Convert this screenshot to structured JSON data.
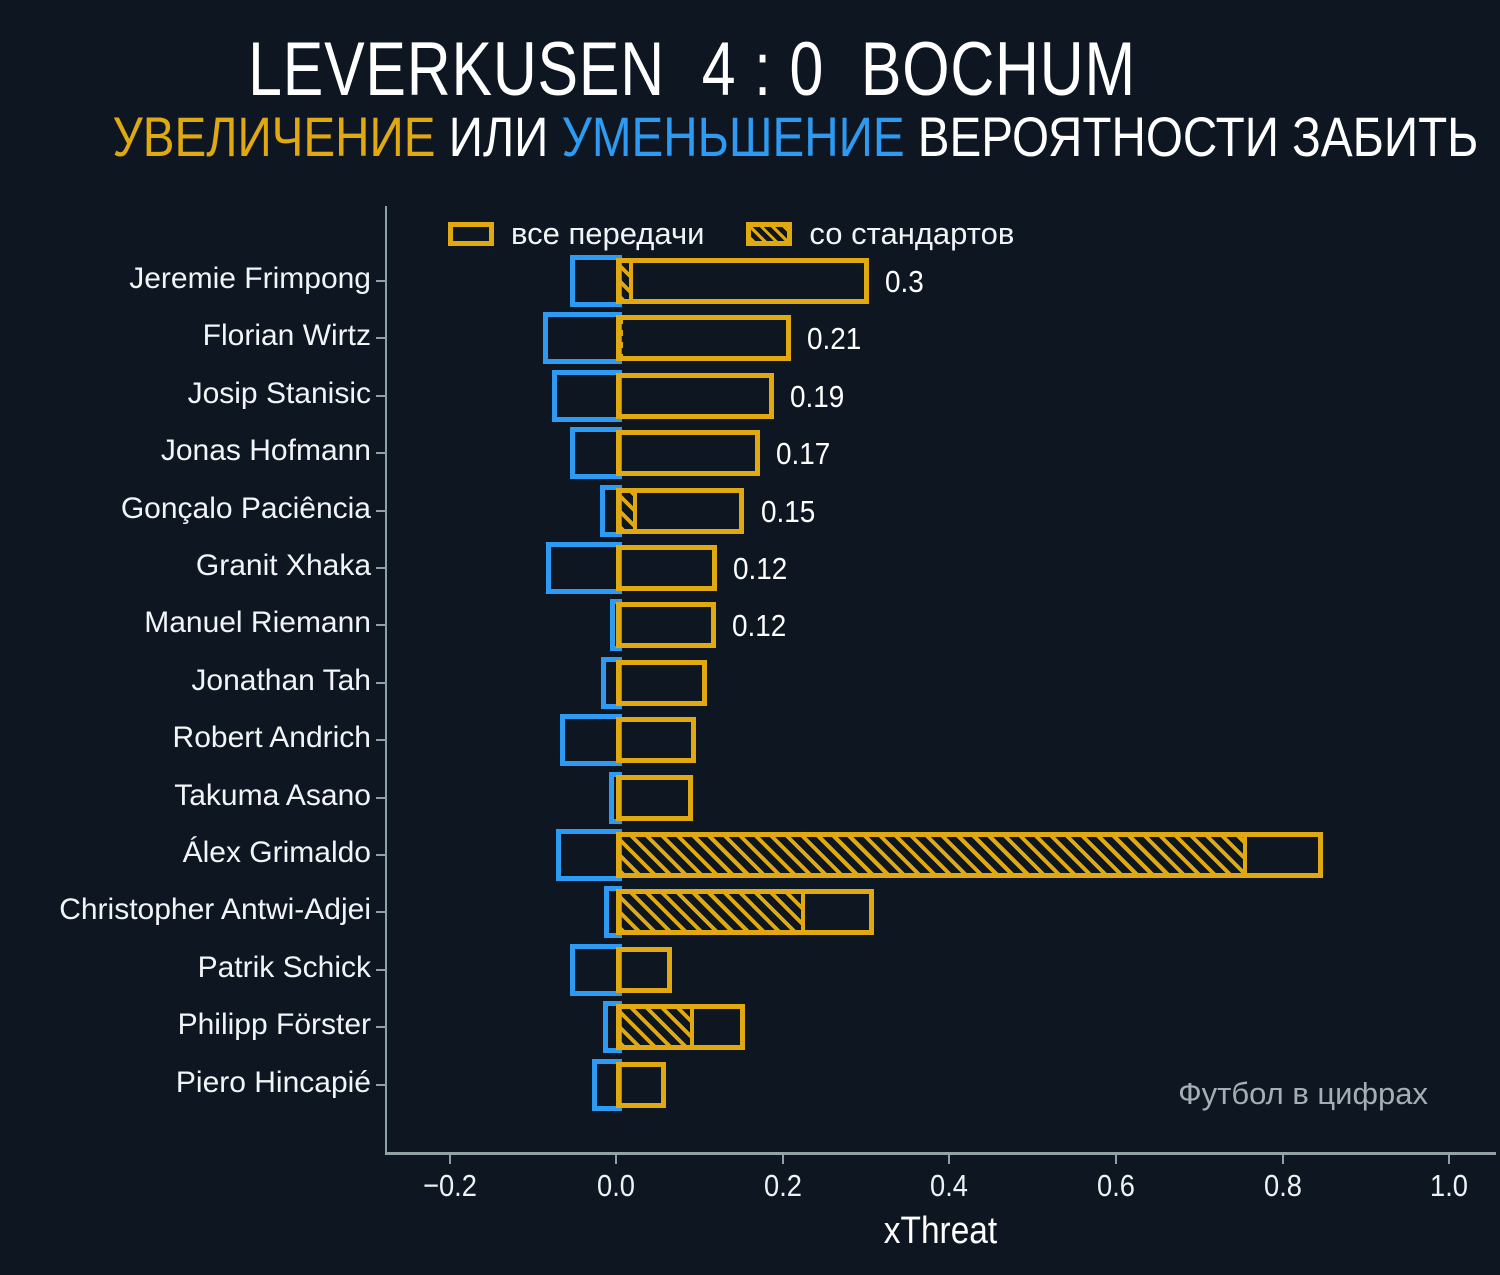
{
  "title": {
    "home": "LEVERKUSEN",
    "score": "4 : 0",
    "away": "BOCHUM"
  },
  "subtitle": {
    "increase_word": "УВЕЛИЧЕНИЕ",
    "or_word": "ИЛИ",
    "decrease_word": "УМЕНЬШЕНИЕ",
    "rest": "ВЕРОЯТНОСТИ ЗАБИТЬ"
  },
  "legend": {
    "all_passes": "все передачи",
    "set_pieces": "со стандартов"
  },
  "watermark": "Футбол в цифрах",
  "colors": {
    "background": "#0e1721",
    "increase_yellow": "#e0a912",
    "decrease_blue": "#2d9bf3",
    "axis_gray": "#8fa0a6",
    "text_white": "#f2f5f7",
    "watermark_gray": "#a4aeb5"
  },
  "chart_data": {
    "type": "bar",
    "orientation": "horizontal",
    "title": "LEVERKUSEN 4 : 0 BOCHUM — УВЕЛИЧЕНИЕ ИЛИ УМЕНЬШЕНИЕ ВЕРОЯТНОСТИ ЗАБИТЬ",
    "xlabel": "xThreat",
    "ylabel": "",
    "xlim": [
      -0.2775,
      1.056
    ],
    "grid": false,
    "legend_position": "top-left-inside",
    "series_legend": [
      "все передачи",
      "со стандартов"
    ],
    "x_ticks": [
      {
        "value": -0.2,
        "label": "−0.2"
      },
      {
        "value": 0.0,
        "label": "0.0"
      },
      {
        "value": 0.2,
        "label": "0.2"
      },
      {
        "value": 0.4,
        "label": "0.4"
      },
      {
        "value": 0.6,
        "label": "0.6"
      },
      {
        "value": 0.8,
        "label": "0.8"
      },
      {
        "value": 1.0,
        "label": "1.0"
      }
    ],
    "players": [
      {
        "name": "Jeremie Frimpong",
        "decrease": -0.056,
        "increase": 0.304,
        "set_pieces": 0.02,
        "label": "0.3"
      },
      {
        "name": "Florian Wirtz",
        "decrease": -0.088,
        "increase": 0.21,
        "set_pieces": 0.005,
        "label": "0.21"
      },
      {
        "name": "Josip Stanisic",
        "decrease": -0.077,
        "increase": 0.19,
        "set_pieces": 0,
        "label": "0.19"
      },
      {
        "name": "Jonas Hofmann",
        "decrease": -0.056,
        "increase": 0.173,
        "set_pieces": 0,
        "label": "0.17"
      },
      {
        "name": "Gonçalo Paciência",
        "decrease": -0.019,
        "increase": 0.154,
        "set_pieces": 0.025,
        "label": "0.15"
      },
      {
        "name": "Granit Xhaka",
        "decrease": -0.084,
        "increase": 0.121,
        "set_pieces": 0,
        "label": "0.12"
      },
      {
        "name": "Manuel Riemann",
        "decrease": -0.008,
        "increase": 0.12,
        "set_pieces": 0,
        "label": "0.12"
      },
      {
        "name": "Jonathan Tah",
        "decrease": -0.018,
        "increase": 0.109,
        "set_pieces": 0,
        "label": ""
      },
      {
        "name": "Robert Andrich",
        "decrease": -0.067,
        "increase": 0.096,
        "set_pieces": 0,
        "label": ""
      },
      {
        "name": "Takuma Asano",
        "decrease": -0.009,
        "increase": 0.092,
        "set_pieces": 0,
        "label": ""
      },
      {
        "name": "Álex Grimaldo",
        "decrease": -0.072,
        "increase": 0.848,
        "set_pieces": 0.757,
        "label": ""
      },
      {
        "name": "Christopher Antwi-Adjei",
        "decrease": -0.015,
        "increase": 0.309,
        "set_pieces": 0.227,
        "label": ""
      },
      {
        "name": "Patrik Schick",
        "decrease": -0.055,
        "increase": 0.067,
        "set_pieces": 0,
        "label": ""
      },
      {
        "name": "Philipp Förster",
        "decrease": -0.016,
        "increase": 0.155,
        "set_pieces": 0.093,
        "label": ""
      },
      {
        "name": "Piero Hincapié",
        "decrease": -0.029,
        "increase": 0.06,
        "set_pieces": 0,
        "label": ""
      }
    ]
  }
}
